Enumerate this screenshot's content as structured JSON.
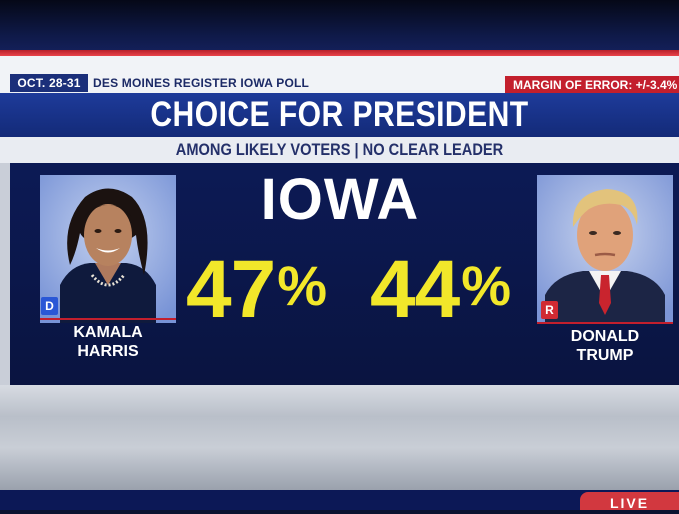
{
  "header": {
    "date": "OCT. 28-31",
    "poll_source": "DES MOINES REGISTER IOWA POLL",
    "margin_of_error": "MARGIN OF ERROR: +/-3.4%"
  },
  "title": "CHOICE FOR PRESIDENT",
  "subtitle": "AMONG LIKELY VOTERS | NO CLEAR LEADER",
  "state": "IOWA",
  "candidates": [
    {
      "first": "KAMALA",
      "last": "HARRIS",
      "party": "D",
      "percent": "47",
      "party_color": "#2a57d6"
    },
    {
      "first": "DONALD",
      "last": "TRUMP",
      "party": "R",
      "percent": "44",
      "party_color": "#d12a33"
    }
  ],
  "percent_symbol": "%",
  "live_label": "LIVE",
  "colors": {
    "accent_yellow": "#f2e72a",
    "navy": "#0c1a55",
    "red": "#c31f2d"
  }
}
